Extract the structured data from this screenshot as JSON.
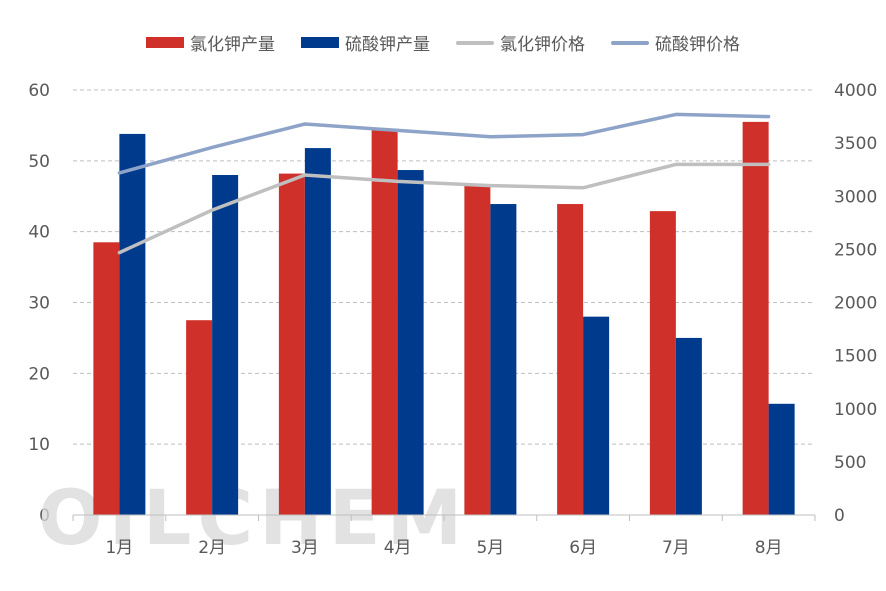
{
  "chart_data": {
    "type": "bar",
    "categories": [
      "1月",
      "2月",
      "3月",
      "4月",
      "5月",
      "6月",
      "7月",
      "8月"
    ],
    "series": [
      {
        "name": "氯化钾产量",
        "kind": "bar",
        "axis": "left",
        "color": "#d0302a",
        "values": [
          38.5,
          27.5,
          48.2,
          54.5,
          46.5,
          43.9,
          42.9,
          55.5
        ]
      },
      {
        "name": "硫酸钾产量",
        "kind": "bar",
        "axis": "left",
        "color": "#003a8c",
        "values": [
          53.8,
          48.0,
          51.8,
          48.7,
          43.9,
          28.0,
          25.0,
          15.7
        ]
      },
      {
        "name": "氯化钾价格",
        "kind": "line",
        "axis": "right",
        "color": "#bfbfbf",
        "values": [
          2470,
          2870,
          3200,
          3140,
          3100,
          3080,
          3300,
          3300
        ]
      },
      {
        "name": "硫酸钾价格",
        "kind": "line",
        "axis": "right",
        "color": "#8ea3c8",
        "values": [
          3220,
          3460,
          3680,
          3620,
          3560,
          3580,
          3770,
          3750
        ]
      }
    ],
    "y_left": {
      "min": 0,
      "max": 60,
      "ticks": [
        0,
        10,
        20,
        30,
        40,
        50,
        60
      ]
    },
    "y_right": {
      "min": 0,
      "max": 4000,
      "ticks": [
        0,
        500,
        1000,
        1500,
        2000,
        2500,
        3000,
        3500,
        4000
      ]
    },
    "grid": "dashed-horizontal",
    "legend_position": "top"
  },
  "watermark": "OILCHEM"
}
